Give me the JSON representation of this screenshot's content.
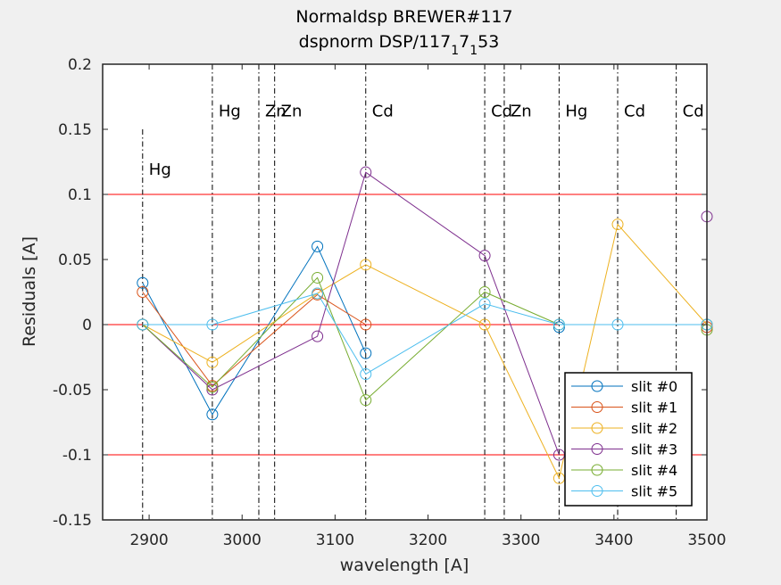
{
  "chart_data": {
    "type": "line",
    "title": "Normaldsp BREWER#117",
    "subtitle": {
      "prefix": "dspnorm DSP/117",
      "sub1": "1",
      "mid": "7",
      "sub2": "1",
      "suffix": "53"
    },
    "xlabel": "wavelength [A]",
    "ylabel": "Residuals [A]",
    "xlim": [
      2850,
      3500
    ],
    "ylim": [
      -0.15,
      0.2
    ],
    "xticks": [
      2900,
      3000,
      3100,
      3200,
      3300,
      3400,
      3500
    ],
    "yticks": [
      -0.15,
      -0.1,
      -0.05,
      0,
      0.05,
      0.1,
      0.15,
      0.2
    ],
    "xtick_labels": [
      "2900",
      "3000",
      "3100",
      "3200",
      "3300",
      "3400",
      "3500"
    ],
    "ytick_labels": [
      "-0.15",
      "-0.1",
      "-0.05",
      "0",
      "0.05",
      "0.1",
      "0.15",
      "0.2"
    ],
    "grid": false,
    "x": [
      2893,
      2968,
      3081,
      3133,
      3261,
      3341,
      3404,
      3500
    ],
    "series": [
      {
        "name": "slit #0",
        "color": "#0072bd",
        "values": [
          0.032,
          -0.069,
          0.06,
          -0.022,
          null,
          -0.002,
          null,
          0.0
        ]
      },
      {
        "name": "slit #1",
        "color": "#d95319",
        "values": [
          0.025,
          -0.047,
          0.023,
          0.0,
          null,
          null,
          null,
          -0.002
        ]
      },
      {
        "name": "slit #2",
        "color": "#edb120",
        "values": [
          0.0,
          -0.029,
          0.024,
          0.046,
          0.0,
          -0.118,
          0.077,
          0.0
        ]
      },
      {
        "name": "slit #3",
        "color": "#7e2f8e",
        "values": [
          0.0,
          -0.05,
          -0.009,
          0.117,
          0.053,
          -0.1,
          null,
          0.083
        ]
      },
      {
        "name": "slit #4",
        "color": "#77ac30",
        "values": [
          0.0,
          -0.048,
          0.036,
          -0.058,
          0.025,
          0.0,
          null,
          -0.004
        ]
      },
      {
        "name": "slit #5",
        "color": "#4dbeee",
        "values": [
          0.0,
          0.0,
          0.024,
          -0.038,
          0.016,
          0.0,
          0.0,
          0.0
        ]
      }
    ],
    "reference_lines": {
      "color": "#ff0000",
      "y": [
        0.1,
        0,
        -0.1
      ]
    },
    "vertical_lines": [
      {
        "x": 2893,
        "label": "Hg",
        "top": 0.15,
        "label_y": 0.115
      },
      {
        "x": 2968,
        "label": "Hg",
        "top": 0.2,
        "label_y": 0.16
      },
      {
        "x": 3018,
        "label": "Zn",
        "top": 0.2,
        "label_y": 0.16
      },
      {
        "x": 3035,
        "label": "Zn",
        "top": 0.2,
        "label_y": 0.16
      },
      {
        "x": 3133,
        "label": "Cd",
        "top": 0.2,
        "label_y": 0.16
      },
      {
        "x": 3261,
        "label": "Cd",
        "top": 0.2,
        "label_y": 0.16
      },
      {
        "x": 3282,
        "label": "Zn",
        "top": 0.2,
        "label_y": 0.16
      },
      {
        "x": 3341,
        "label": "Hg",
        "top": 0.2,
        "label_y": 0.16
      },
      {
        "x": 3404,
        "label": "Cd",
        "top": 0.2,
        "label_y": 0.16
      },
      {
        "x": 3467,
        "label": "Cd",
        "top": 0.2,
        "label_y": 0.16
      }
    ],
    "legend": {
      "position": "bottom-right"
    }
  }
}
